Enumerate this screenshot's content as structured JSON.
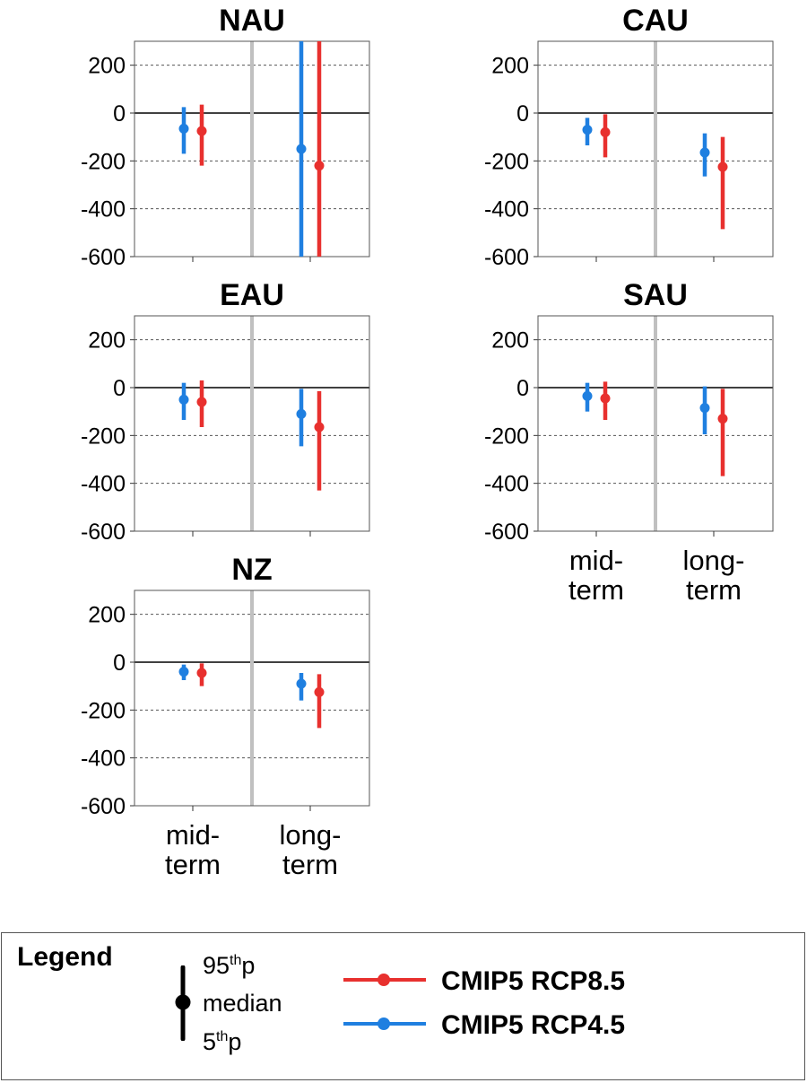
{
  "chart_data": [
    {
      "type": "errorbar",
      "title": "NAU",
      "ylim": [
        -600,
        300
      ],
      "yticks": [
        200,
        0,
        -200,
        -400,
        -600
      ],
      "categories": [
        "mid-term",
        "long-term"
      ],
      "series": [
        {
          "name": "CMIP5 RCP4.5",
          "color": "#1f7fe0",
          "median": [
            -65,
            -150
          ],
          "p5": [
            -170,
            -600
          ],
          "p95": [
            25,
            300
          ]
        },
        {
          "name": "CMIP5 RCP8.5",
          "color": "#e8302e",
          "median": [
            -75,
            -220
          ],
          "p5": [
            -220,
            -600
          ],
          "p95": [
            35,
            300
          ]
        }
      ]
    },
    {
      "type": "errorbar",
      "title": "CAU",
      "ylim": [
        -600,
        300
      ],
      "yticks": [
        200,
        0,
        -200,
        -400,
        -600
      ],
      "categories": [
        "mid-term",
        "long-term"
      ],
      "series": [
        {
          "name": "CMIP5 RCP4.5",
          "color": "#1f7fe0",
          "median": [
            -70,
            -165
          ],
          "p5": [
            -135,
            -265
          ],
          "p95": [
            -20,
            -85
          ]
        },
        {
          "name": "CMIP5 RCP8.5",
          "color": "#e8302e",
          "median": [
            -80,
            -225
          ],
          "p5": [
            -185,
            -485
          ],
          "p95": [
            -5,
            -100
          ]
        }
      ]
    },
    {
      "type": "errorbar",
      "title": "EAU",
      "ylim": [
        -600,
        300
      ],
      "yticks": [
        200,
        0,
        -200,
        -400,
        -600
      ],
      "categories": [
        "mid-term",
        "long-term"
      ],
      "series": [
        {
          "name": "CMIP5 RCP4.5",
          "color": "#1f7fe0",
          "median": [
            -50,
            -110
          ],
          "p5": [
            -135,
            -245
          ],
          "p95": [
            20,
            -5
          ]
        },
        {
          "name": "CMIP5 RCP8.5",
          "color": "#e8302e",
          "median": [
            -60,
            -165
          ],
          "p5": [
            -165,
            -430
          ],
          "p95": [
            30,
            -15
          ]
        }
      ]
    },
    {
      "type": "errorbar",
      "title": "SAU",
      "ylim": [
        -600,
        300
      ],
      "yticks": [
        200,
        0,
        -200,
        -400,
        -600
      ],
      "categories": [
        "mid-term",
        "long-term"
      ],
      "xlabels": [
        "mid-\nterm",
        "long-\nterm"
      ],
      "series": [
        {
          "name": "CMIP5 RCP4.5",
          "color": "#1f7fe0",
          "median": [
            -35,
            -85
          ],
          "p5": [
            -100,
            -195
          ],
          "p95": [
            20,
            5
          ]
        },
        {
          "name": "CMIP5 RCP8.5",
          "color": "#e8302e",
          "median": [
            -45,
            -130
          ],
          "p5": [
            -135,
            -370
          ],
          "p95": [
            25,
            -5
          ]
        }
      ]
    },
    {
      "type": "errorbar",
      "title": "NZ",
      "ylim": [
        -600,
        300
      ],
      "yticks": [
        200,
        0,
        -200,
        -400,
        -600
      ],
      "categories": [
        "mid-term",
        "long-term"
      ],
      "xlabels": [
        "mid-\nterm",
        "long-\nterm"
      ],
      "series": [
        {
          "name": "CMIP5 RCP4.5",
          "color": "#1f7fe0",
          "median": [
            -40,
            -90
          ],
          "p5": [
            -75,
            -160
          ],
          "p95": [
            -10,
            -45
          ]
        },
        {
          "name": "CMIP5 RCP8.5",
          "color": "#e8302e",
          "median": [
            -45,
            -125
          ],
          "p5": [
            -100,
            -275
          ],
          "p95": [
            -5,
            -50
          ]
        }
      ]
    }
  ],
  "legend": {
    "title": "Legend",
    "p95": "95",
    "p95_sup": "th",
    "p95_suffix": "p",
    "median": "median",
    "p5": "5",
    "p5_sup": "th",
    "p5_suffix": "p",
    "items": [
      {
        "name": "CMIP5 RCP8.5",
        "color": "#e8302e"
      },
      {
        "name": "CMIP5 RCP4.5",
        "color": "#1f7fe0"
      }
    ]
  }
}
